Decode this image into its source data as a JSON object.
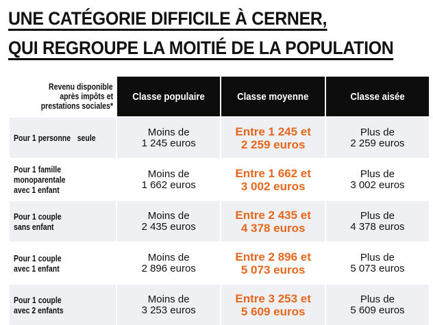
{
  "title": {
    "line1": "UNE CATÉGORIE DIFFICILE À CERNER,",
    "line2": "QUI REGROUPE LA MOITIÉ DE LA POPULATION"
  },
  "table": {
    "corner": {
      "line1": "Revenu disponible",
      "line2": "après impôts et",
      "line3": "prestations sociales*"
    },
    "columns": [
      "Classe populaire",
      "Classe moyenne",
      "Classe aisée"
    ],
    "rows": [
      {
        "label": [
          "Pour 1 personne",
          "seule"
        ],
        "populaire": [
          "Moins de",
          "1 245 euros"
        ],
        "moyenne": [
          "Entre 1 245 et",
          "2 259 euros"
        ],
        "aisee": [
          "Plus de",
          "2 259 euros"
        ]
      },
      {
        "label": [
          "Pour 1 famille",
          "monoparentale",
          "avec 1 enfant"
        ],
        "populaire": [
          "Moins de",
          "1 662 euros"
        ],
        "moyenne": [
          "Entre 1 662 et",
          "3 002 euros"
        ],
        "aisee": [
          "Plus de",
          "3 002 euros"
        ]
      },
      {
        "label": [
          "Pour 1 couple",
          "sans enfant"
        ],
        "populaire": [
          "Moins de",
          "2 435 euros"
        ],
        "moyenne": [
          "Entre 2 435 et",
          "4 378 euros"
        ],
        "aisee": [
          "Plus de",
          "4 378 euros"
        ]
      },
      {
        "label": [
          "Pour 1 couple",
          "avec 1 enfant"
        ],
        "populaire": [
          "Moins de",
          "2 896 euros"
        ],
        "moyenne": [
          "Entre 2 896 et",
          "5 073 euros"
        ],
        "aisee": [
          "Plus de",
          "5 073 euros"
        ]
      },
      {
        "label": [
          "Pour 1 couple",
          "avec 2 enfants"
        ],
        "populaire": [
          "Moins de",
          "3 253 euros"
        ],
        "moyenne": [
          "Entre 3 253 et",
          "5 609 euros"
        ],
        "aisee": [
          "Plus de",
          "5 609 euros"
        ]
      }
    ]
  },
  "colors": {
    "header_bg": "#0d0d0d",
    "highlight": "#e8661c",
    "alt_row_bg": "#eef0f3"
  }
}
